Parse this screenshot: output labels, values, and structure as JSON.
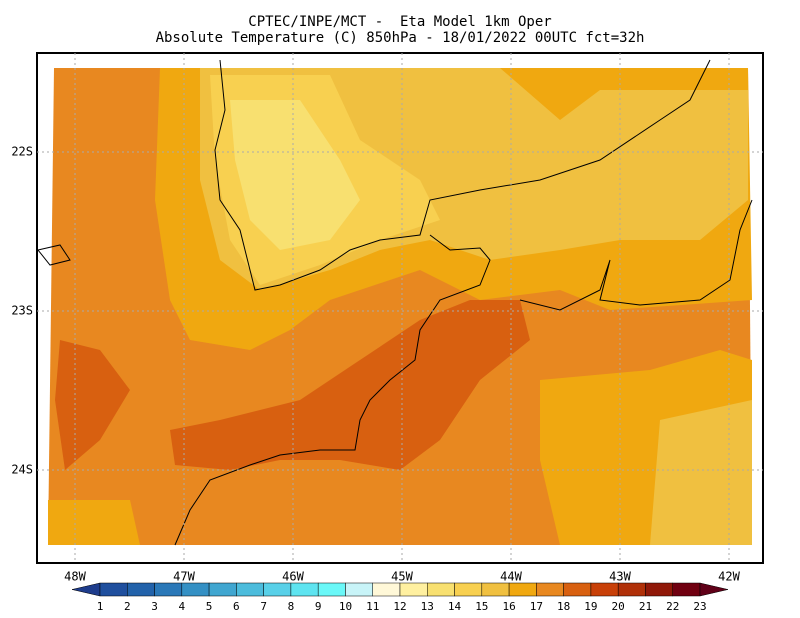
{
  "header": {
    "title_line1": "CPTEC/INPE/MCT -  Eta Model 1km Oper",
    "title_line2": "Absolute Temperature (C) 850hPa - 18/01/2022 00UTC fct=32h"
  },
  "map": {
    "lat_labels": [
      "22S",
      "23S",
      "24S"
    ],
    "lon_labels": [
      "48W",
      "47W",
      "46W",
      "45W",
      "44W",
      "43W",
      "42W"
    ]
  },
  "colorbar": {
    "labels": [
      1,
      2,
      3,
      4,
      5,
      6,
      7,
      8,
      9,
      10,
      11,
      12,
      13,
      14,
      15,
      16,
      17,
      18,
      19,
      20,
      21,
      22,
      23
    ],
    "colors": [
      "#1e3c8c",
      "#1f4f9e",
      "#2262aa",
      "#2a78b8",
      "#3490c4",
      "#40a6d0",
      "#4cbcdc",
      "#58d0e8",
      "#5ee4f0",
      "#6af8f8",
      "#c8f4f8",
      "#fff8d8",
      "#fff0a0",
      "#f8e070",
      "#f8d050",
      "#f0c040",
      "#f0a810",
      "#e88820",
      "#d86010",
      "#c84008",
      "#b03008",
      "#901808",
      "#700010",
      "#600018"
    ]
  }
}
